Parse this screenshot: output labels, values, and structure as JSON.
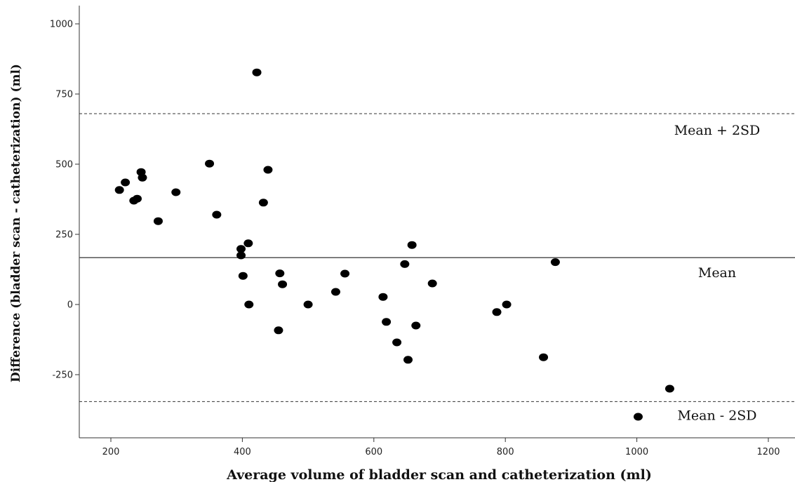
{
  "chart_data": {
    "type": "scatter",
    "xlabel": "Average volume of bladder scan and catheterization (ml)",
    "ylabel": "Difference (bladder scan - catheterization) (ml)",
    "xlim": [
      150,
      1250
    ],
    "ylim": [
      -475,
      1050
    ],
    "x_ticks": [
      200,
      400,
      600,
      800,
      1000,
      1200
    ],
    "y_ticks": [
      1000,
      750,
      500,
      250,
      0,
      -250
    ],
    "grid": false,
    "points": [
      {
        "x": 213,
        "y": 408
      },
      {
        "x": 222,
        "y": 435
      },
      {
        "x": 235,
        "y": 370
      },
      {
        "x": 240,
        "y": 377
      },
      {
        "x": 246,
        "y": 472
      },
      {
        "x": 248,
        "y": 452
      },
      {
        "x": 272,
        "y": 297
      },
      {
        "x": 299,
        "y": 400
      },
      {
        "x": 350,
        "y": 502
      },
      {
        "x": 361,
        "y": 320
      },
      {
        "x": 398,
        "y": 198
      },
      {
        "x": 398,
        "y": 175
      },
      {
        "x": 401,
        "y": 102
      },
      {
        "x": 409,
        "y": 218
      },
      {
        "x": 410,
        "y": 0
      },
      {
        "x": 422,
        "y": 827
      },
      {
        "x": 432,
        "y": 363
      },
      {
        "x": 439,
        "y": 480
      },
      {
        "x": 455,
        "y": -92
      },
      {
        "x": 457,
        "y": 111
      },
      {
        "x": 461,
        "y": 72
      },
      {
        "x": 500,
        "y": 0
      },
      {
        "x": 542,
        "y": 45
      },
      {
        "x": 556,
        "y": 110
      },
      {
        "x": 614,
        "y": 27
      },
      {
        "x": 619,
        "y": -62
      },
      {
        "x": 635,
        "y": -135
      },
      {
        "x": 647,
        "y": 144
      },
      {
        "x": 652,
        "y": -197
      },
      {
        "x": 658,
        "y": 212
      },
      {
        "x": 664,
        "y": -75
      },
      {
        "x": 689,
        "y": 75
      },
      {
        "x": 787,
        "y": -27
      },
      {
        "x": 802,
        "y": 0
      },
      {
        "x": 858,
        "y": -188
      },
      {
        "x": 876,
        "y": 151
      },
      {
        "x": 1002,
        "y": -400
      },
      {
        "x": 1050,
        "y": -300
      }
    ],
    "reference_lines": [
      {
        "label": "Mean + 2SD",
        "y": 680,
        "style": "dashed"
      },
      {
        "label": "Mean",
        "y": 167,
        "style": "solid"
      },
      {
        "label": "Mean - 2SD",
        "y": -346,
        "style": "dashed"
      }
    ],
    "point_color": "#000000",
    "line_color": "#555555"
  }
}
